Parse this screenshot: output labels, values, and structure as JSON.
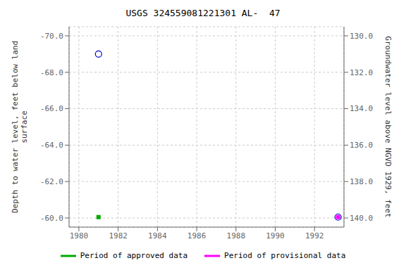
{
  "chart_data": {
    "type": "scatter",
    "title": "USGS 324559081221301 AL-  47",
    "ylabel": "Depth to water level, feet below land\n surface",
    "y2label": "Groundwater level above NGVD 1929, feet",
    "xlim": [
      1979.5,
      1993.5
    ],
    "xticks": [
      1980,
      1982,
      1984,
      1986,
      1988,
      1990,
      1992
    ],
    "ylim": [
      -59.5,
      -70.5
    ],
    "yticks": [
      {
        "value": -70.0,
        "label": "-70.0"
      },
      {
        "value": -68.0,
        "label": "-68.0"
      },
      {
        "value": -66.0,
        "label": "-66.0"
      },
      {
        "value": -64.0,
        "label": "-64.0"
      },
      {
        "value": -62.0,
        "label": "-62.0"
      },
      {
        "value": -60.0,
        "label": "-60.0"
      }
    ],
    "y2lim": [
      140.5,
      129.5
    ],
    "y2ticks": [
      {
        "value": 130.0,
        "label": "130.0"
      },
      {
        "value": 132.0,
        "label": "132.0"
      },
      {
        "value": 134.0,
        "label": "134.0"
      },
      {
        "value": 136.0,
        "label": "136.0"
      },
      {
        "value": 138.0,
        "label": "138.0"
      },
      {
        "value": 140.0,
        "label": "140.0"
      }
    ],
    "grid": true,
    "legend": "bottom",
    "series": [
      {
        "color": "#0000cc",
        "marker": "open_circle",
        "x": [
          1981.0,
          1993.2
        ],
        "values": [
          -69.0,
          -60.05
        ]
      },
      {
        "name": "Period of approved data",
        "color": "#00aa00",
        "marker": "square",
        "x": [
          1981.0
        ],
        "values": [
          -60.05
        ]
      },
      {
        "name": "Period of provisional data",
        "color": "#ff00ff",
        "marker": "square",
        "x": [
          1993.2
        ],
        "values": [
          -60.05
        ]
      }
    ]
  }
}
